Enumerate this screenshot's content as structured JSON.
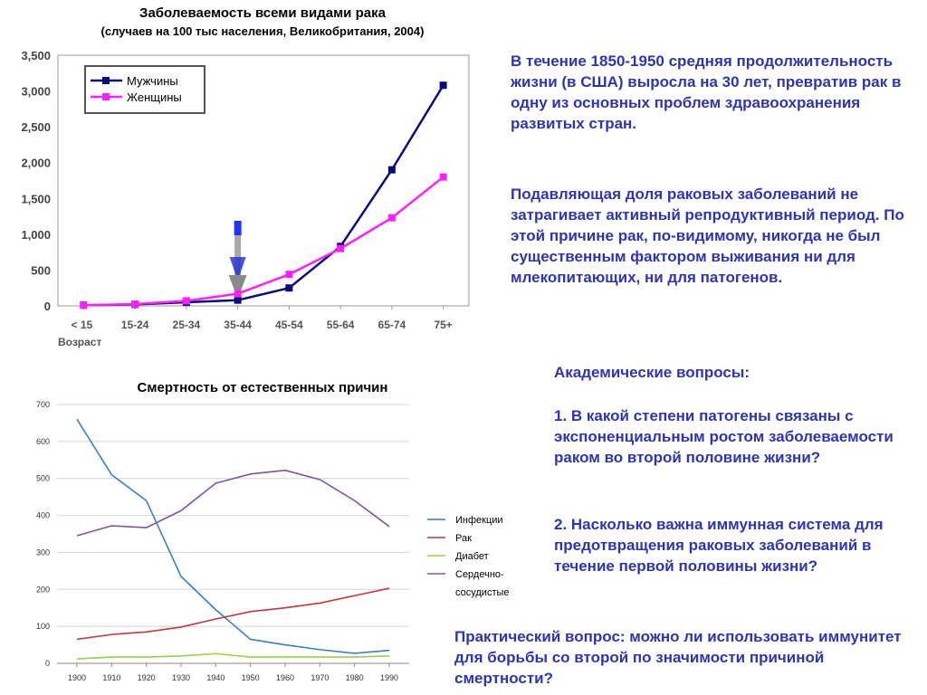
{
  "chart1": {
    "title": "Заболеваемость всеми видами рака",
    "subtitle": "(случаев на 100 тыс населения, Великобритания, 2004)"
  },
  "chart2": {
    "title": "Смертность от естественных причин"
  },
  "text": {
    "para1": "В течение 1850-1950 средняя продолжительность жизни (в США) выросла на 30 лет, превратив рак в одну из основных проблем здравоохранения развитых стран.",
    "para2": "Подавляющая доля раковых заболеваний не затрагивает активный репродуктивный период. По этой причине рак, по-видимому, никогда не был существенным фактором выживания ни для млекопитающих, ни для патогенов.",
    "questions_title": "Академические вопросы:",
    "q1": "1. В какой степени патогены связаны с экспоненциальным ростом заболеваемости раком во второй половине жизни?",
    "q2": "2. Насколько важна иммунная система для предотвращения раковых заболеваний в течение первой половины жизни?",
    "practical": "Практический вопрос: можно ли использовать иммунитет для борьбы со второй по значимости причиной смертности?"
  },
  "colors": {
    "text_blue": "#2e35b0",
    "men": "#0a0a78",
    "women": "#ff1fff",
    "infections": "#3a7fbf",
    "cancer": "#bf3a3a",
    "diabetes": "#9ccf4a",
    "cardio": "#7d55a0"
  },
  "chart_data": [
    {
      "type": "line",
      "title": "Заболеваемость всеми видами рака",
      "subtitle": "(случаев на 100 тыс населения, Великобритания, 2004)",
      "categories": [
        "< 15",
        "15-24",
        "25-34",
        "35-44",
        "45-54",
        "55-64",
        "65-74",
        "75+"
      ],
      "xlabel": "Возраст",
      "ylabel": "",
      "ylim": [
        0,
        3500
      ],
      "yticks": [
        "0",
        "500",
        "1,000",
        "1,500",
        "2,000",
        "2,500",
        "3,000",
        "3,500"
      ],
      "grid": false,
      "legend": "top-left",
      "series": [
        {
          "name": "Мужчины",
          "values": [
            10,
            20,
            50,
            80,
            250,
            830,
            1900,
            3080
          ]
        },
        {
          "name": "Женщины",
          "values": [
            10,
            25,
            70,
            170,
            440,
            800,
            1230,
            1800
          ]
        }
      ],
      "annotation": "arrow pointing down at 35-44"
    },
    {
      "type": "line",
      "title": "Смертность от естественных причин",
      "x": [
        "1900",
        "1910",
        "1920",
        "1930",
        "1940",
        "1950",
        "1960",
        "1970",
        "1980",
        "1990"
      ],
      "ylim": [
        0,
        700
      ],
      "yticks": [
        "0",
        "100",
        "200",
        "300",
        "400",
        "500",
        "600",
        "700"
      ],
      "grid": true,
      "legend": "right",
      "series": [
        {
          "name": "Инфекции",
          "values": [
            660,
            510,
            440,
            235,
            145,
            65,
            50,
            37,
            27,
            35
          ]
        },
        {
          "name": "Рак",
          "values": [
            65,
            78,
            85,
            98,
            120,
            140,
            150,
            163,
            183,
            203
          ]
        },
        {
          "name": "Диабет",
          "values": [
            12,
            17,
            17,
            20,
            26,
            17,
            17,
            17,
            17,
            20
          ]
        },
        {
          "name": "Сердечно-сосудистые",
          "values": [
            345,
            372,
            367,
            413,
            487,
            512,
            522,
            497,
            440,
            370
          ]
        }
      ]
    }
  ]
}
